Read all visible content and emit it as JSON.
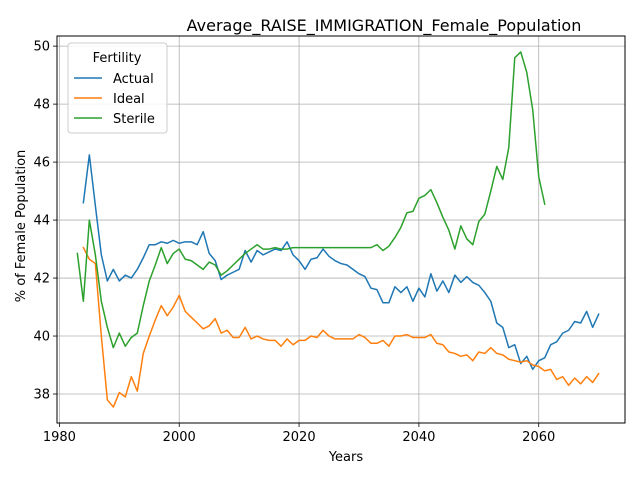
{
  "chart_data": {
    "type": "line",
    "title": "Average_RAISE_IMMIGRATION_Female_Population",
    "xlabel": "Years",
    "ylabel": "% of Female Population",
    "xlim": [
      1979.6,
      2074.4
    ],
    "ylim": [
      37.0,
      50.35
    ],
    "xticks": [
      1980,
      2000,
      2020,
      2040,
      2060
    ],
    "yticks": [
      38,
      40,
      42,
      44,
      46,
      48,
      50
    ],
    "grid": true,
    "legend": {
      "title": "Fertility",
      "placement": "upper left"
    },
    "colors": {
      "Actual": "#1f77b4",
      "Ideal": "#ff7f0e",
      "Sterile": "#2ca02c"
    },
    "series": [
      {
        "name": "Actual",
        "x": [
          1984,
          1985,
          1986,
          1987,
          1988,
          1989,
          1990,
          1991,
          1992,
          1993,
          1994,
          1995,
          1996,
          1997,
          1998,
          1999,
          2000,
          2001,
          2002,
          2003,
          2004,
          2005,
          2006,
          2007,
          2008,
          2009,
          2010,
          2011,
          2012,
          2013,
          2014,
          2015,
          2016,
          2017,
          2018,
          2019,
          2020,
          2021,
          2022,
          2023,
          2024,
          2025,
          2026,
          2027,
          2028,
          2029,
          2030,
          2031,
          2032,
          2033,
          2034,
          2035,
          2036,
          2037,
          2038,
          2039,
          2040,
          2041,
          2042,
          2043,
          2044,
          2045,
          2046,
          2047,
          2048,
          2049,
          2050,
          2051,
          2052,
          2053,
          2054,
          2055,
          2056,
          2057,
          2058,
          2059,
          2060,
          2061,
          2062,
          2063,
          2064,
          2065,
          2066,
          2067,
          2068,
          2069,
          2070
        ],
        "values": [
          44.6,
          46.25,
          44.5,
          42.8,
          41.9,
          42.3,
          41.9,
          42.1,
          42.0,
          42.3,
          42.7,
          43.15,
          43.15,
          43.25,
          43.2,
          43.3,
          43.2,
          43.25,
          43.25,
          43.15,
          43.6,
          42.85,
          42.6,
          41.95,
          42.1,
          42.2,
          42.3,
          42.95,
          42.55,
          42.95,
          42.8,
          42.9,
          43.0,
          42.95,
          43.25,
          42.8,
          42.6,
          42.3,
          42.65,
          42.7,
          43.0,
          42.75,
          42.6,
          42.5,
          42.45,
          42.3,
          42.15,
          42.05,
          41.65,
          41.6,
          41.15,
          41.15,
          41.7,
          41.5,
          41.7,
          41.2,
          41.65,
          41.35,
          42.15,
          41.55,
          41.9,
          41.5,
          42.1,
          41.85,
          42.05,
          41.85,
          41.75,
          41.5,
          41.2,
          40.45,
          40.3,
          39.6,
          39.7,
          39.05,
          39.3,
          38.85,
          39.15,
          39.25,
          39.7,
          39.8,
          40.1,
          40.2,
          40.5,
          40.45,
          40.85,
          40.3,
          40.75
        ]
      },
      {
        "name": "Ideal",
        "x": [
          1984,
          1985,
          1986,
          1987,
          1988,
          1989,
          1990,
          1991,
          1992,
          1993,
          1994,
          1995,
          1996,
          1997,
          1998,
          1999,
          2000,
          2001,
          2002,
          2003,
          2004,
          2005,
          2006,
          2007,
          2008,
          2009,
          2010,
          2011,
          2012,
          2013,
          2014,
          2015,
          2016,
          2017,
          2018,
          2019,
          2020,
          2021,
          2022,
          2023,
          2024,
          2025,
          2026,
          2027,
          2028,
          2029,
          2030,
          2031,
          2032,
          2033,
          2034,
          2035,
          2036,
          2037,
          2038,
          2039,
          2040,
          2041,
          2042,
          2043,
          2044,
          2045,
          2046,
          2047,
          2048,
          2049,
          2050,
          2051,
          2052,
          2053,
          2054,
          2055,
          2056,
          2057,
          2058,
          2059,
          2060,
          2061,
          2062,
          2063,
          2064,
          2065,
          2066,
          2067,
          2068,
          2069,
          2070
        ],
        "values": [
          43.05,
          42.65,
          42.5,
          40.0,
          37.8,
          37.55,
          38.05,
          37.9,
          38.6,
          38.1,
          39.4,
          40.0,
          40.55,
          41.05,
          40.7,
          41.0,
          41.4,
          40.85,
          40.65,
          40.45,
          40.25,
          40.35,
          40.6,
          40.1,
          40.2,
          39.95,
          39.95,
          40.3,
          39.9,
          40.0,
          39.9,
          39.85,
          39.85,
          39.65,
          39.9,
          39.7,
          39.85,
          39.85,
          40.0,
          39.95,
          40.2,
          40.0,
          39.9,
          39.9,
          39.9,
          39.9,
          40.05,
          39.95,
          39.75,
          39.75,
          39.85,
          39.65,
          40.0,
          40.0,
          40.05,
          39.95,
          39.95,
          39.95,
          40.05,
          39.75,
          39.7,
          39.45,
          39.4,
          39.3,
          39.35,
          39.15,
          39.45,
          39.4,
          39.6,
          39.4,
          39.35,
          39.2,
          39.15,
          39.1,
          39.15,
          39.0,
          38.95,
          38.8,
          38.85,
          38.5,
          38.6,
          38.3,
          38.55,
          38.35,
          38.6,
          38.4,
          38.7
        ]
      },
      {
        "name": "Sterile",
        "x": [
          1983,
          1984,
          1985,
          1986,
          1987,
          1988,
          1989,
          1990,
          1991,
          1992,
          1993,
          1994,
          1995,
          1996,
          1997,
          1998,
          1999,
          2000,
          2001,
          2002,
          2003,
          2004,
          2005,
          2006,
          2007,
          2008,
          2009,
          2010,
          2011,
          2012,
          2013,
          2014,
          2015,
          2016,
          2017,
          2018,
          2019,
          2020,
          2021,
          2022,
          2023,
          2024,
          2025,
          2026,
          2027,
          2028,
          2029,
          2030,
          2031,
          2032,
          2033,
          2034,
          2035,
          2036,
          2037,
          2038,
          2039,
          2040,
          2041,
          2042,
          2043,
          2044,
          2045,
          2046,
          2047,
          2048,
          2049,
          2050,
          2051,
          2052,
          2053,
          2054,
          2055,
          2056,
          2057,
          2058,
          2059,
          2060,
          2061
        ],
        "values": [
          42.85,
          41.2,
          44.0,
          42.8,
          41.2,
          40.3,
          39.6,
          40.1,
          39.65,
          39.95,
          40.1,
          41.05,
          41.9,
          42.45,
          43.05,
          42.5,
          42.85,
          43.0,
          42.65,
          42.6,
          42.45,
          42.3,
          42.55,
          42.45,
          42.1,
          42.25,
          42.45,
          42.65,
          42.85,
          43.0,
          43.15,
          43.0,
          43.0,
          43.05,
          43.0,
          43.0,
          43.05,
          43.05,
          43.05,
          43.05,
          43.05,
          43.05,
          43.05,
          43.05,
          43.05,
          43.05,
          43.05,
          43.05,
          43.05,
          43.05,
          43.15,
          42.95,
          43.1,
          43.4,
          43.75,
          44.25,
          44.3,
          44.75,
          44.85,
          45.05,
          44.6,
          44.1,
          43.65,
          43.0,
          43.8,
          43.35,
          43.15,
          43.95,
          44.2,
          45.0,
          45.85,
          45.4,
          46.5,
          49.6,
          49.8,
          49.1,
          47.8,
          45.5,
          44.55
        ]
      }
    ]
  }
}
